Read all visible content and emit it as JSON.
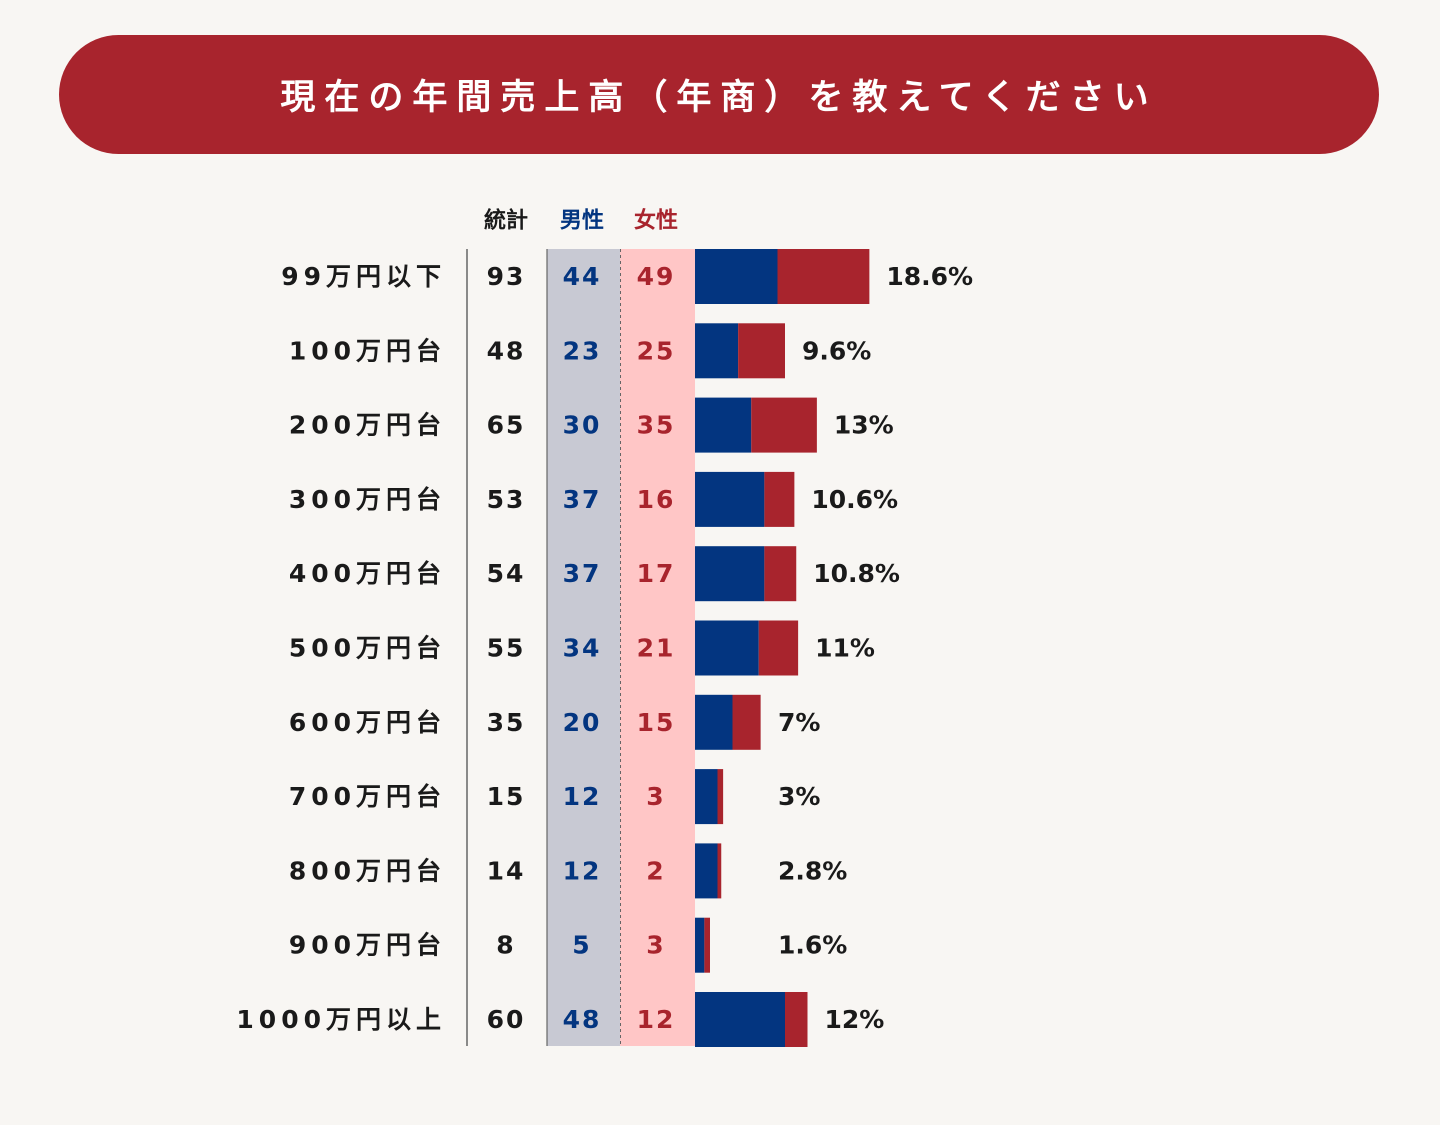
{
  "title": "現在の年間売上高（年商）を教えてください",
  "colors": {
    "male": "#033580",
    "female": "#a8242d",
    "male_col_bg": "#c8c9d3",
    "female_col_bg": "#ffc6c6",
    "text": "#1a1a1a",
    "background": "#f8f6f3"
  },
  "chart_data": {
    "type": "bar",
    "orientation": "horizontal",
    "stacked": true,
    "title": "現在の年間売上高（年商）を教えてください",
    "column_headers": {
      "total": "統計",
      "male": "男性",
      "female": "女性"
    },
    "categories": [
      "99万円以下",
      "100万円台",
      "200万円台",
      "300万円台",
      "400万円台",
      "500万円台",
      "600万円台",
      "700万円台",
      "800万円台",
      "900万円台",
      "1000万円以上"
    ],
    "totals": [
      93,
      48,
      65,
      53,
      54,
      55,
      35,
      15,
      14,
      8,
      60
    ],
    "series": [
      {
        "name": "男性",
        "values": [
          44,
          23,
          30,
          37,
          37,
          34,
          20,
          12,
          12,
          5,
          48
        ]
      },
      {
        "name": "女性",
        "values": [
          49,
          25,
          35,
          16,
          17,
          21,
          15,
          3,
          2,
          3,
          12
        ]
      }
    ],
    "percent_labels": [
      "18.6%",
      "9.6%",
      "13%",
      "10.6%",
      "10.8%",
      "11%",
      "7%",
      "3%",
      "2.8%",
      "1.6%",
      "12%"
    ]
  }
}
